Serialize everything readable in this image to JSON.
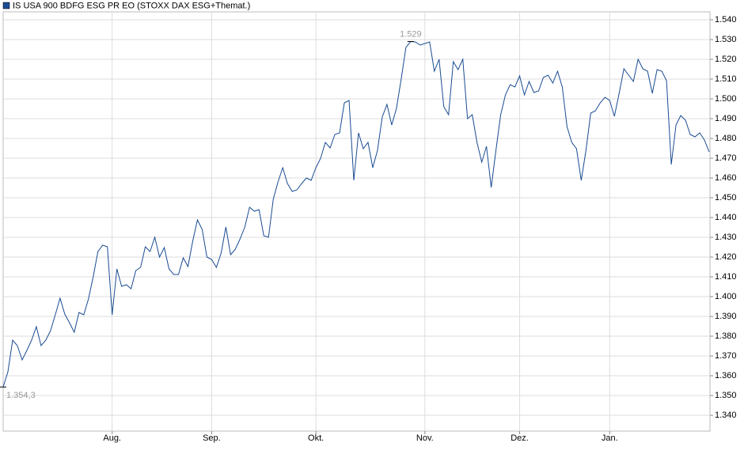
{
  "chart_data": {
    "type": "line",
    "series": [
      {
        "name": "IS USA 900 BDFG ESG PR EO (STOXX DAX ESG+Themat.)",
        "color": "#1a4c93",
        "values": [
          1354.3,
          1362,
          1378,
          1375.2,
          1368,
          1372.8,
          1378,
          1384.8,
          1375.2,
          1378,
          1382.8,
          1390.8,
          1399.2,
          1391.2,
          1386.8,
          1382,
          1392,
          1390.8,
          1398.8,
          1410,
          1422.8,
          1426,
          1425.2,
          1390.8,
          1414,
          1405.2,
          1406,
          1404,
          1413.2,
          1414.8,
          1425.2,
          1422.8,
          1430,
          1420,
          1424.8,
          1414,
          1411.2,
          1411.2,
          1419.6,
          1415.2,
          1428,
          1438.8,
          1434,
          1420,
          1418.8,
          1414.8,
          1422,
          1435.2,
          1421.2,
          1424,
          1429.2,
          1435.2,
          1445.2,
          1443.2,
          1444,
          1430.8,
          1430,
          1449.2,
          1458,
          1465.2,
          1457.2,
          1453.2,
          1454,
          1457.2,
          1460,
          1458.8,
          1465.2,
          1470,
          1478,
          1475.2,
          1482,
          1482.8,
          1498,
          1499.2,
          1458.8,
          1482.8,
          1474.8,
          1478,
          1465.2,
          1474,
          1490.8,
          1497.2,
          1486.8,
          1495.2,
          1510,
          1526,
          1529,
          1528.8,
          1527.2,
          1528,
          1528.8,
          1514,
          1520,
          1496,
          1492,
          1518.8,
          1514.8,
          1520,
          1490,
          1492,
          1478,
          1468,
          1476,
          1455.2,
          1474,
          1492,
          1502,
          1507.2,
          1506,
          1511.6,
          1502,
          1508.8,
          1503.2,
          1504,
          1510.8,
          1512,
          1508,
          1514,
          1506,
          1486,
          1478,
          1474.8,
          1458.8,
          1474,
          1492.8,
          1494,
          1498,
          1500.8,
          1499.2,
          1491.2,
          1502.8,
          1515.2,
          1512,
          1508.8,
          1520,
          1515.2,
          1514,
          1502.8,
          1514.8,
          1514,
          1509.2,
          1466.8,
          1486.8,
          1491.6,
          1489.2,
          1482,
          1480.8,
          1482.8,
          1479.2,
          1473.2
        ],
        "value_labels": [
          "1.354,3",
          null,
          null,
          null,
          null,
          null,
          null,
          null,
          null,
          null,
          null,
          null,
          null,
          null,
          null,
          null,
          null,
          null,
          null,
          null,
          null,
          null,
          null,
          null,
          null,
          null,
          null,
          null,
          null,
          null,
          null,
          null,
          null,
          null,
          null,
          null,
          null,
          null,
          null,
          null,
          null,
          null,
          null,
          null,
          null,
          null,
          null,
          null,
          null,
          null,
          null,
          null,
          null,
          null,
          null,
          null,
          null,
          null,
          null,
          null,
          null,
          null,
          null,
          null,
          null,
          null,
          null,
          null,
          null,
          null,
          null,
          null,
          null,
          null,
          null,
          null,
          null,
          null,
          null,
          null,
          null,
          null,
          null,
          null,
          null,
          null,
          "1.529",
          null,
          null,
          null,
          null,
          null,
          null,
          null,
          null,
          null,
          null,
          null,
          null,
          null,
          null,
          null,
          null,
          null,
          null,
          null,
          null,
          null,
          null,
          null,
          null,
          null,
          null,
          null,
          null,
          null,
          null,
          null,
          null,
          null,
          null,
          null,
          null,
          null,
          null,
          null,
          null,
          null,
          null,
          null,
          null,
          null,
          null,
          null,
          null,
          null,
          null,
          null,
          null,
          null,
          null,
          null,
          null,
          null,
          null,
          null,
          null,
          null,
          null,
          null
        ]
      }
    ],
    "categories": [
      null,
      null,
      null,
      null,
      null,
      null,
      null,
      null,
      null,
      null,
      null,
      null,
      null,
      null,
      null,
      null,
      null,
      null,
      null,
      null,
      null,
      null,
      null,
      "Aug.",
      null,
      null,
      null,
      null,
      null,
      null,
      null,
      null,
      null,
      null,
      null,
      null,
      null,
      null,
      null,
      null,
      null,
      null,
      null,
      null,
      "Sep.",
      null,
      null,
      null,
      null,
      null,
      null,
      null,
      null,
      null,
      null,
      null,
      null,
      null,
      null,
      null,
      null,
      null,
      null,
      null,
      null,
      null,
      "Okt.",
      null,
      null,
      null,
      null,
      null,
      null,
      null,
      null,
      null,
      null,
      null,
      null,
      null,
      null,
      null,
      null,
      null,
      null,
      null,
      null,
      null,
      null,
      "Nov.",
      null,
      null,
      null,
      null,
      null,
      null,
      null,
      null,
      null,
      null,
      null,
      null,
      null,
      null,
      null,
      null,
      null,
      null,
      null,
      "Dez.",
      null,
      null,
      null,
      null,
      null,
      null,
      null,
      null,
      null,
      null,
      null,
      null,
      null,
      null,
      null,
      null,
      null,
      null,
      "Jan.",
      null,
      null,
      null,
      null,
      null,
      null,
      null,
      null,
      null,
      null,
      null,
      null,
      null,
      null,
      null,
      null,
      null,
      null,
      null,
      null,
      null
    ],
    "ylim": [
      1332,
      1544
    ],
    "yticks": [
      {
        "value": 1340,
        "label": "1.340"
      },
      {
        "value": 1350,
        "label": "1.350"
      },
      {
        "value": 1360,
        "label": "1.360"
      },
      {
        "value": 1370,
        "label": "1.370"
      },
      {
        "value": 1380,
        "label": "1.380"
      },
      {
        "value": 1390,
        "label": "1.390"
      },
      {
        "value": 1400,
        "label": "1.400"
      },
      {
        "value": 1410,
        "label": "1.410"
      },
      {
        "value": 1420,
        "label": "1.420"
      },
      {
        "value": 1430,
        "label": "1.430"
      },
      {
        "value": 1440,
        "label": "1.440"
      },
      {
        "value": 1450,
        "label": "1.450"
      },
      {
        "value": 1460,
        "label": "1.460"
      },
      {
        "value": 1470,
        "label": "1.470"
      },
      {
        "value": 1480,
        "label": "1.480"
      },
      {
        "value": 1490,
        "label": "1.490"
      },
      {
        "value": 1500,
        "label": "1.500"
      },
      {
        "value": 1510,
        "label": "1.510"
      },
      {
        "value": 1520,
        "label": "1.520"
      },
      {
        "value": 1530,
        "label": "1.530"
      },
      {
        "value": 1540,
        "label": "1.540"
      }
    ],
    "grid": true
  }
}
